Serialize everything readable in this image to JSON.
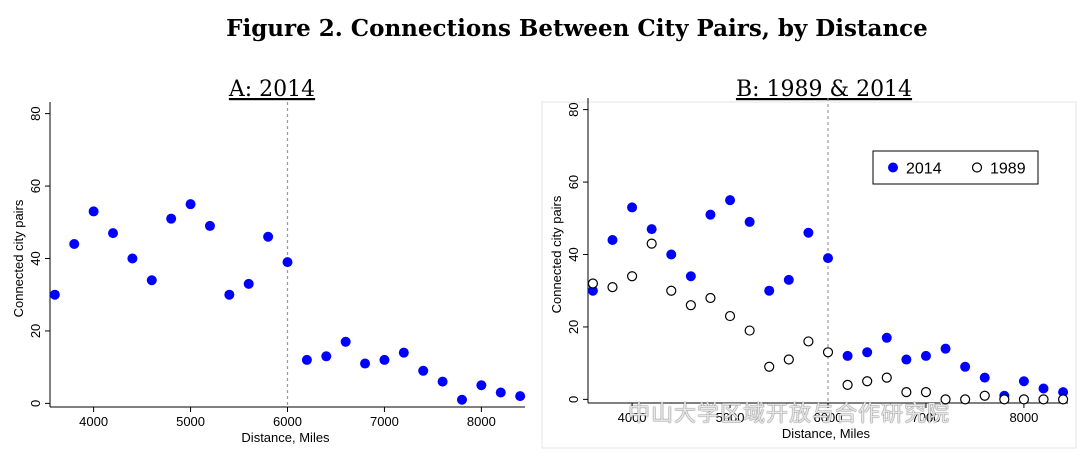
{
  "figure_title": "Figure 2. Connections Between City Pairs, by Distance",
  "watermark": "中山大学区域开放与合作研究院",
  "colors": {
    "s2014": "#0000ff",
    "s1989": "#000000",
    "dashed": "#9a9a9a",
    "axis": "#000000"
  },
  "chart_data": [
    {
      "type": "scatter",
      "title": "A: 2014",
      "xlabel": "Distance, Miles",
      "ylabel": "Connected city pairs",
      "xlim": [
        3550,
        8450
      ],
      "ylim": [
        -1,
        81
      ],
      "xticks": [
        4000,
        5000,
        6000,
        7000,
        8000
      ],
      "yticks": [
        0,
        20,
        40,
        60,
        80
      ],
      "threshold_x": 6000,
      "legend": null,
      "series": [
        {
          "key": "s2014",
          "marker": "filled",
          "x": [
            3600,
            3800,
            4000,
            4200,
            4400,
            4600,
            4800,
            5000,
            5200,
            5400,
            5600,
            5800,
            6000,
            6200,
            6400,
            6600,
            6800,
            7000,
            7200,
            7400,
            7600,
            7800,
            8000,
            8200,
            8400
          ],
          "y": [
            30,
            44,
            53,
            47,
            40,
            34,
            51,
            55,
            49,
            30,
            33,
            46,
            39,
            12,
            13,
            17,
            11,
            12,
            14,
            9,
            6,
            1,
            5,
            3,
            2
          ]
        }
      ]
    },
    {
      "type": "scatter",
      "title": "B: 1989 & 2014",
      "xlabel": "Distance, Miles",
      "ylabel": "Connected city pairs",
      "xlim": [
        3550,
        8450
      ],
      "ylim": [
        -1,
        81
      ],
      "xticks": [
        4000,
        5000,
        6000,
        7000,
        8000
      ],
      "yticks": [
        0,
        20,
        40,
        60,
        80
      ],
      "threshold_x": 6000,
      "legend": {
        "position": "top-right",
        "entries": [
          "2014",
          "1989"
        ]
      },
      "series": [
        {
          "name": "2014",
          "key": "s2014",
          "marker": "filled",
          "x": [
            3600,
            3800,
            4000,
            4200,
            4400,
            4600,
            4800,
            5000,
            5200,
            5400,
            5600,
            5800,
            6000,
            6200,
            6400,
            6600,
            6800,
            7000,
            7200,
            7400,
            7600,
            7800,
            8000,
            8200,
            8400
          ],
          "y": [
            30,
            44,
            53,
            47,
            40,
            34,
            51,
            55,
            49,
            30,
            33,
            46,
            39,
            12,
            13,
            17,
            11,
            12,
            14,
            9,
            6,
            1,
            5,
            3,
            2
          ]
        },
        {
          "name": "1989",
          "key": "s1989",
          "marker": "hollow",
          "x": [
            3600,
            3800,
            4000,
            4200,
            4400,
            4600,
            4800,
            5000,
            5200,
            5400,
            5600,
            5800,
            6000,
            6200,
            6400,
            6600,
            6800,
            7000,
            7200,
            7400,
            7600,
            7800,
            8000,
            8200,
            8400
          ],
          "y": [
            32,
            31,
            34,
            43,
            30,
            26,
            28,
            23,
            19,
            9,
            11,
            16,
            13,
            4,
            5,
            6,
            2,
            2,
            0,
            0,
            1,
            0,
            0,
            0,
            0
          ]
        }
      ]
    }
  ]
}
